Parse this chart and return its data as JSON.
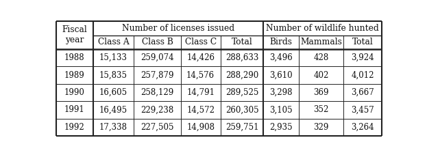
{
  "col_group1_header": "Number of licenses issued",
  "col_group2_header": "Number of wildlife hunted",
  "row_header": "Fiscal\nyear",
  "subheaders": [
    "Class A",
    "Class B",
    "Class C",
    "Total",
    "Birds",
    "Mammals",
    "Total"
  ],
  "years": [
    "1988",
    "1989",
    "1990",
    "1991",
    "1992"
  ],
  "data": [
    [
      "15,133",
      "259,074",
      "14,426",
      "288,633",
      "3,496",
      "428",
      "3,924"
    ],
    [
      "15,835",
      "257,879",
      "14,576",
      "288,290",
      "3,610",
      "402",
      "4,012"
    ],
    [
      "16,605",
      "258,129",
      "14,791",
      "289,525",
      "3,298",
      "369",
      "3,667"
    ],
    [
      "16,495",
      "229,238",
      "14,572",
      "260,305",
      "3,105",
      "352",
      "3,457"
    ],
    [
      "17,338",
      "227,505",
      "14,908",
      "259,751",
      "2,935",
      "329",
      "3,264"
    ]
  ],
  "bg_color": "#ffffff",
  "line_color": "#222222",
  "text_color": "#111111",
  "font_size": 8.5,
  "header_font_size": 8.8
}
